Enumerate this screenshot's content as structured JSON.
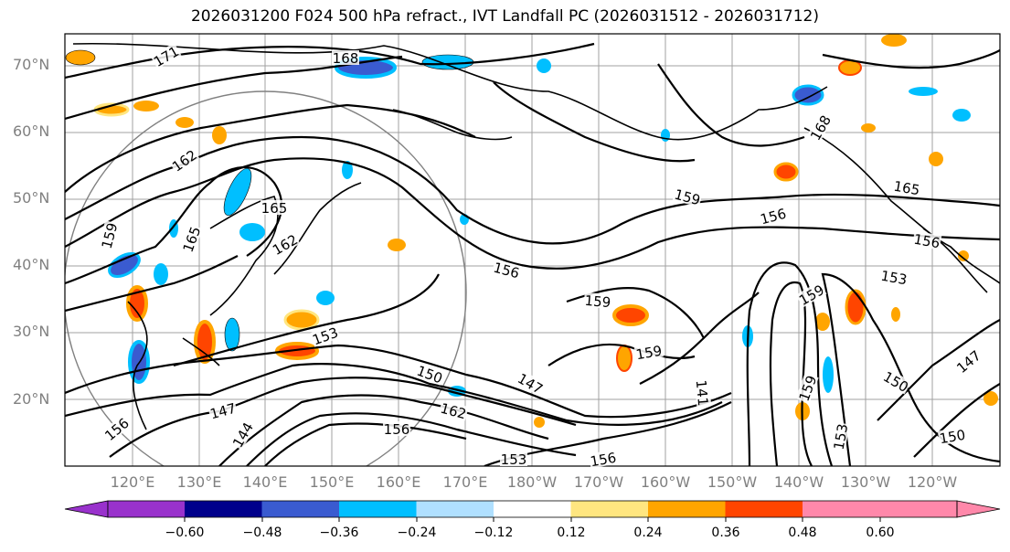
{
  "title": "2026031200 F024 500 hPa refract., IVT Landfall PC (2026031512 - 2026031712)",
  "lat_labels": [
    "70°N",
    "60°N",
    "50°N",
    "40°N",
    "30°N",
    "20°N"
  ],
  "lon_labels": [
    "120°E",
    "130°E",
    "140°E",
    "150°E",
    "160°E",
    "170°E",
    "180°W",
    "170°W",
    "160°W",
    "150°W",
    "140°W",
    "130°W",
    "120°W"
  ],
  "colorbar": {
    "ticks": [
      "−0.60",
      "−0.48",
      "−0.36",
      "−0.24",
      "−0.12",
      "0.12",
      "0.24",
      "0.36",
      "0.48",
      "0.60"
    ],
    "colors": [
      "#9932cc",
      "#00008b",
      "#3a5bd0",
      "#00bfff",
      "#b0e0ff",
      "#ffffff",
      "#ffe680",
      "#ffa500",
      "#ff4500",
      "#b22222",
      "#ff88aa"
    ]
  },
  "contour_labels": [
    "168",
    "171",
    "162",
    "159",
    "165",
    "156",
    "153",
    "150",
    "147",
    "144",
    "141"
  ]
}
